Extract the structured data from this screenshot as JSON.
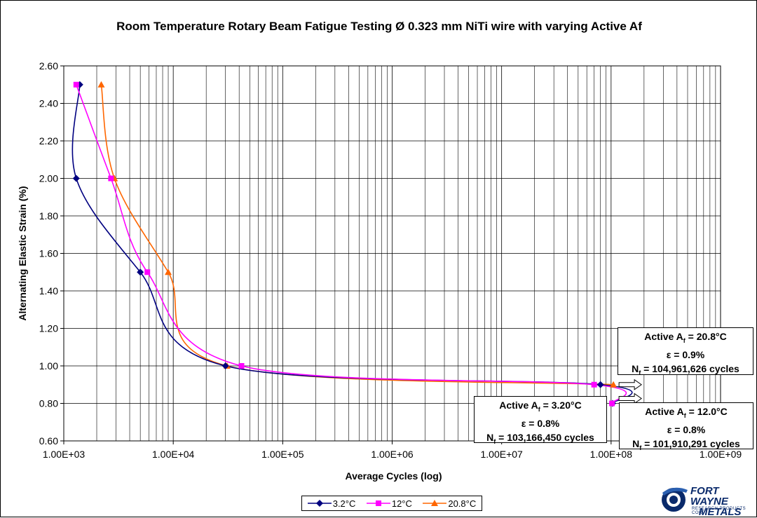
{
  "chart_data": {
    "type": "line",
    "title": "Room Temperature Rotary Beam Fatigue Testing Ø 0.323 mm NiTi wire with varying Active Af",
    "xlabel": "Average Cycles (log)",
    "ylabel": "Alternating Elastic Strain (%)",
    "xscale": "log",
    "xlim": [
      1000,
      1000000000
    ],
    "ylim": [
      0.6,
      2.6
    ],
    "x_ticks": [
      "1.00E+03",
      "1.00E+04",
      "1.00E+05",
      "1.00E+06",
      "1.00E+07",
      "1.00E+08",
      "1.00E+09"
    ],
    "y_ticks": [
      "0.60",
      "0.80",
      "1.00",
      "1.20",
      "1.40",
      "1.60",
      "1.80",
      "2.00",
      "2.20",
      "2.40",
      "2.60"
    ],
    "grid": true,
    "legend_position": "bottom",
    "series": [
      {
        "name": "3.2°C",
        "color": "#000080",
        "marker": "diamond",
        "x": [
          1400,
          1300,
          5000,
          30000,
          80000000,
          103166450
        ],
        "y": [
          2.5,
          2.0,
          1.5,
          1.0,
          0.9,
          0.8
        ]
      },
      {
        "name": "12°C",
        "color": "#ff00ff",
        "marker": "square",
        "x": [
          1300,
          2700,
          5800,
          42000,
          70000000,
          101910291
        ],
        "y": [
          2.5,
          2.0,
          1.5,
          1.0,
          0.9,
          0.8
        ]
      },
      {
        "name": "20.8°C",
        "color": "#ff6600",
        "marker": "triangle",
        "x": [
          2200,
          2900,
          9000,
          31000,
          104961626
        ],
        "y": [
          2.5,
          2.0,
          1.5,
          1.0,
          0.9
        ]
      }
    ],
    "annotations": [
      {
        "id": "a208",
        "line1": "Active A",
        "sub": "f",
        "line1b": " = 20.8°C",
        "line2": "ε = 0.9%",
        "line3": "N",
        "sub3": "f",
        "line3b": " = 104,961,626 cycles"
      },
      {
        "id": "a32",
        "line1": "Active A",
        "sub": "f",
        "line1b": " = 3.20°C",
        "line2": "ε = 0.8%",
        "line3": "N",
        "sub3": "f",
        "line3b": " = 103,166,450 cycles"
      },
      {
        "id": "a12",
        "line1": "Active A",
        "sub": "f",
        "line1b": " = 12.0°C",
        "line2": "ε = 0.8%",
        "line3": "N",
        "sub3": "f",
        "line3b": " = 101,910,291 cycles"
      }
    ]
  },
  "logo": {
    "line1": "FORT WAYNE",
    "line2": "METALS",
    "line3": "RESEARCH PRODUCTS CORP."
  }
}
